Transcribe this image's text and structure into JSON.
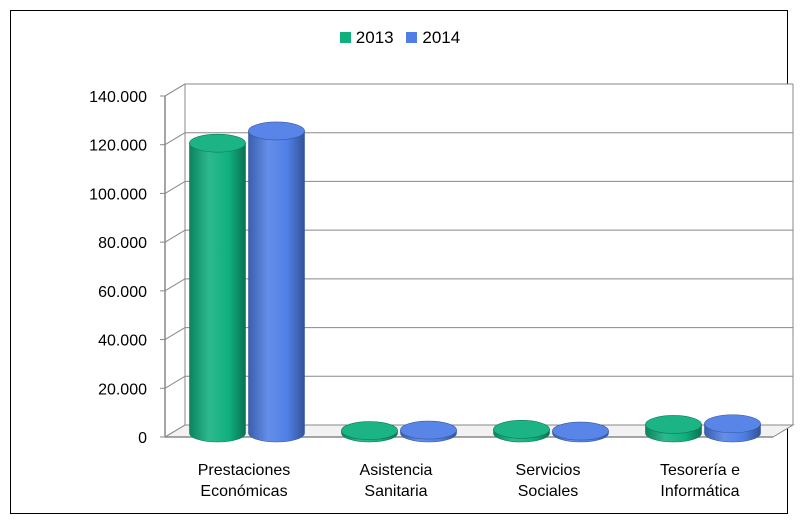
{
  "chart_data": {
    "type": "bar",
    "categories": [
      [
        "Prestaciones",
        "Económicas"
      ],
      [
        "Asistencia",
        "Sanitaria"
      ],
      [
        "Servicios",
        "Sociales"
      ],
      [
        "Tesorería e",
        "Informática"
      ]
    ],
    "series": [
      {
        "name": "2013",
        "color": "#10b07e",
        "values": [
          119000,
          1000,
          1500,
          3500
        ]
      },
      {
        "name": "2014",
        "color": "#4f7fe6",
        "values": [
          124000,
          1200,
          800,
          3800
        ]
      }
    ],
    "yticks": [
      "140.000",
      "120.000",
      "100.000",
      "80.000",
      "60.000",
      "40.000",
      "20.000",
      "0"
    ],
    "ylim": [
      0,
      140000
    ],
    "grid": true,
    "legend_position": "top"
  }
}
